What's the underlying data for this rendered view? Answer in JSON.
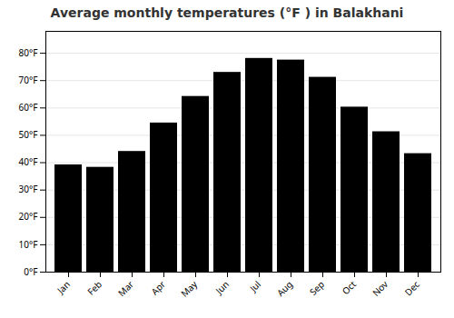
{
  "chart_data": {
    "type": "bar",
    "title": "Average monthly temperatures (°F ) in Balakhani",
    "categories": [
      "Jan",
      "Feb",
      "Mar",
      "Apr",
      "May",
      "Jun",
      "Jul",
      "Aug",
      "Sep",
      "Oct",
      "Nov",
      "Dec"
    ],
    "values": [
      39.2,
      38.3,
      44.1,
      54.5,
      64.2,
      73.0,
      78.1,
      77.5,
      71.2,
      60.3,
      51.3,
      43.3
    ],
    "ylim": [
      0,
      88
    ],
    "yticks": [
      {
        "value": 0,
        "label": "0°F"
      },
      {
        "value": 10,
        "label": "10°F"
      },
      {
        "value": 20,
        "label": "20°F"
      },
      {
        "value": 30,
        "label": "30°F"
      },
      {
        "value": 40,
        "label": "40°F"
      },
      {
        "value": 50,
        "label": "50°F"
      },
      {
        "value": 60,
        "label": "60°F"
      },
      {
        "value": 70,
        "label": "70°F"
      },
      {
        "value": 80,
        "label": "80°F"
      }
    ],
    "grid": true
  }
}
